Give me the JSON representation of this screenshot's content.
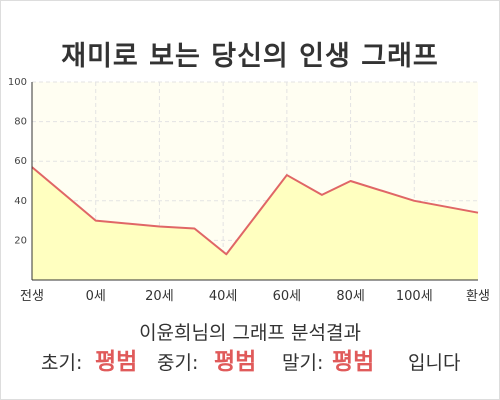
{
  "title": "재미로 보는 당신의 인생 그래프",
  "caption": "이윤희님의 그래프 분석결과",
  "summary": {
    "early_label": "초기:",
    "early_value": "평범",
    "mid_label": "중기:",
    "mid_value": "평범",
    "late_label": "말기:",
    "late_value": "평범",
    "ending": "입니다"
  },
  "chart_data": {
    "type": "area",
    "title": "재미로 보는 당신의 인생 그래프",
    "xlabel": "",
    "ylabel": "",
    "ylim": [
      0,
      100
    ],
    "yticks": [
      20,
      40,
      60,
      80,
      100
    ],
    "grid": true,
    "x_labels": [
      "전생",
      "0세",
      "20세",
      "40세",
      "60세",
      "80세",
      "100세",
      "환생"
    ],
    "points": [
      {
        "x": 0,
        "y": 57
      },
      {
        "x": 1,
        "y": 30
      },
      {
        "x": 2,
        "y": 27
      },
      {
        "x": 2.55,
        "y": 26
      },
      {
        "x": 3.05,
        "y": 13
      },
      {
        "x": 4,
        "y": 53
      },
      {
        "x": 4.55,
        "y": 43
      },
      {
        "x": 5,
        "y": 50
      },
      {
        "x": 6,
        "y": 40
      },
      {
        "x": 7,
        "y": 34
      }
    ],
    "colors": {
      "line": "#e06666",
      "fill": "#ffffc0",
      "plot_bg": "#fffef2",
      "grid": "#e3e3e3",
      "axis": "#333333"
    }
  }
}
